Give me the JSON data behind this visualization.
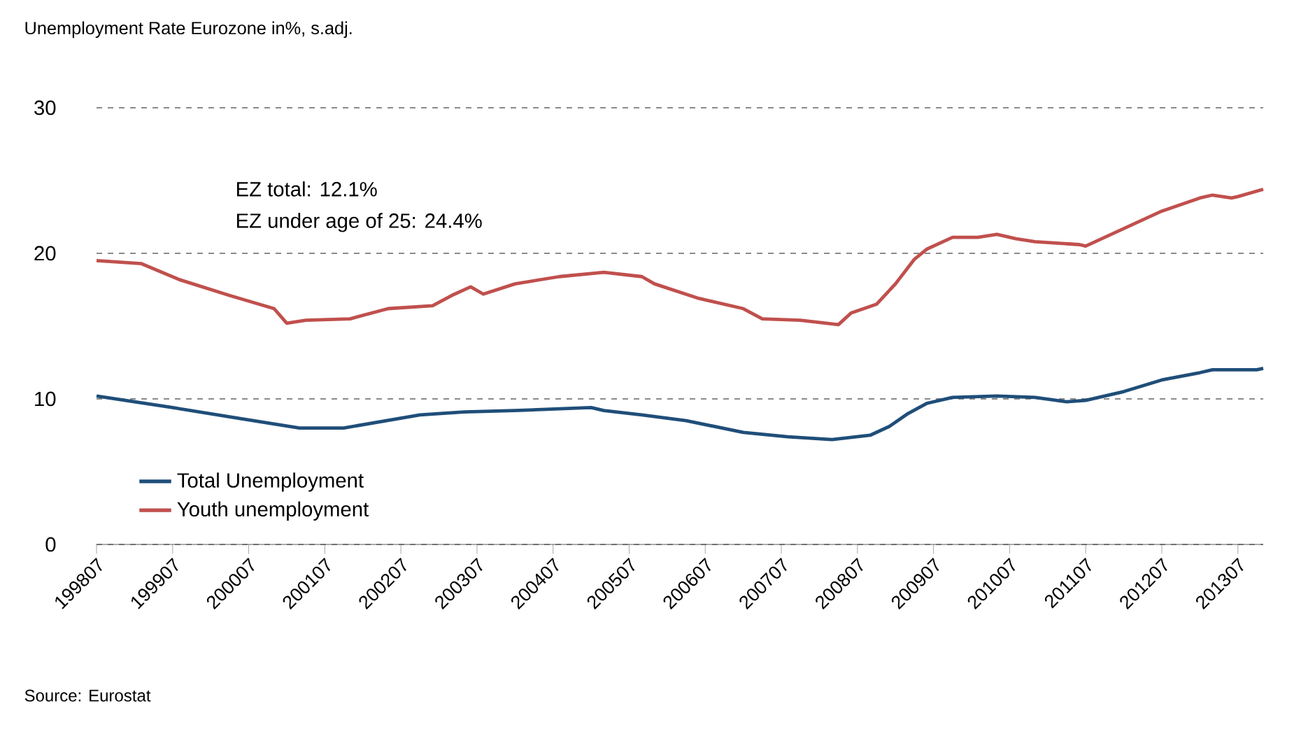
{
  "chart_data": {
    "type": "line",
    "title": "Unemployment Rate Eurozone in%, s.adj.",
    "annotations": [
      "EZ total: 12.1%",
      "EZ under age of 25: 24.4%",
      "Source: Eurostat"
    ],
    "series": [
      {
        "name": "Total Unemployment",
        "color": "#1f4e79",
        "x": [
          "1998-07",
          "1999-07",
          "2000-05",
          "2001-03",
          "2001-10",
          "2002-10",
          "2003-05",
          "2004-01",
          "2005-01",
          "2005-03",
          "2005-09",
          "2006-04",
          "2007-01",
          "2007-08",
          "2008-03",
          "2008-09",
          "2008-12",
          "2009-03",
          "2009-06",
          "2009-10",
          "2010-05",
          "2010-11",
          "2011-04",
          "2011-07",
          "2012-01",
          "2012-07",
          "2013-01",
          "2013-03",
          "2013-10",
          "2013-11"
        ],
        "values": [
          10.2,
          9.4,
          8.7,
          8.0,
          8.0,
          8.9,
          9.1,
          9.2,
          9.4,
          9.2,
          8.9,
          8.5,
          7.7,
          7.4,
          7.2,
          7.5,
          8.1,
          9.0,
          9.7,
          10.1,
          10.2,
          10.1,
          9.8,
          9.9,
          10.5,
          11.3,
          11.8,
          12.0,
          12.0,
          12.1
        ]
      },
      {
        "name": "Youth unemployment",
        "color": "#c0504d",
        "x": [
          "1998-07",
          "1999-02",
          "1999-08",
          "2000-04",
          "2000-11",
          "2001-01",
          "2001-04",
          "2001-11",
          "2002-05",
          "2002-12",
          "2003-03",
          "2003-06",
          "2003-08",
          "2004-01",
          "2004-08",
          "2005-03",
          "2005-09",
          "2005-11",
          "2006-06",
          "2007-01",
          "2007-04",
          "2007-10",
          "2008-04",
          "2008-06",
          "2008-10",
          "2009-01",
          "2009-04",
          "2009-06",
          "2009-10",
          "2010-02",
          "2010-05",
          "2010-08",
          "2010-11",
          "2011-06",
          "2011-07",
          "2012-01",
          "2012-07",
          "2013-01",
          "2013-03",
          "2013-06",
          "2013-07",
          "2013-11"
        ],
        "values": [
          19.5,
          19.3,
          18.2,
          17.1,
          16.2,
          15.2,
          15.4,
          15.5,
          16.2,
          16.4,
          17.1,
          17.7,
          17.2,
          17.9,
          18.4,
          18.7,
          18.4,
          17.9,
          16.9,
          16.2,
          15.5,
          15.4,
          15.1,
          15.9,
          16.5,
          17.9,
          19.6,
          20.3,
          21.1,
          21.1,
          21.3,
          21.0,
          20.8,
          20.6,
          20.5,
          21.7,
          22.9,
          23.8,
          24.0,
          23.8,
          23.9,
          24.4
        ]
      }
    ],
    "xlim": [
      "1998-07",
      "2013-11"
    ],
    "xticks": [
      {
        "value": "1998-07",
        "label": "199807"
      },
      {
        "value": "1999-07",
        "label": "199907"
      },
      {
        "value": "2000-07",
        "label": "200007"
      },
      {
        "value": "2001-07",
        "label": "200107"
      },
      {
        "value": "2002-07",
        "label": "200207"
      },
      {
        "value": "2003-07",
        "label": "200307"
      },
      {
        "value": "2004-07",
        "label": "200407"
      },
      {
        "value": "2005-07",
        "label": "200507"
      },
      {
        "value": "2006-07",
        "label": "200607"
      },
      {
        "value": "2007-07",
        "label": "200707"
      },
      {
        "value": "2008-07",
        "label": "200807"
      },
      {
        "value": "2009-07",
        "label": "200907"
      },
      {
        "value": "2010-07",
        "label": "201007"
      },
      {
        "value": "2011-07",
        "label": "201107"
      },
      {
        "value": "2012-07",
        "label": "201207"
      },
      {
        "value": "2013-07",
        "label": "201307"
      }
    ],
    "ylim": [
      0,
      30
    ],
    "yticks": [
      0,
      10,
      20,
      30
    ],
    "grid": "y",
    "legend": "bottom left"
  }
}
